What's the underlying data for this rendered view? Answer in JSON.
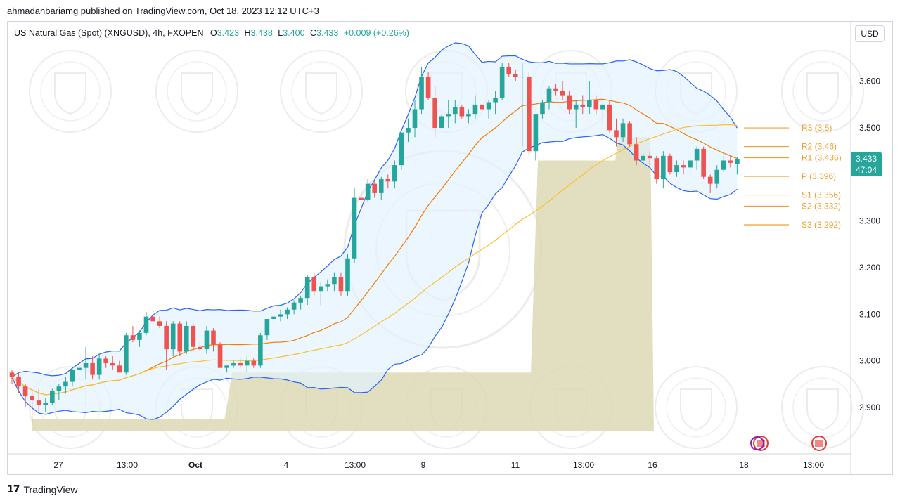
{
  "header": {
    "published": "ahmadanbariamg published on TradingView.com, Oct 18, 2023 12:12 UTC+3"
  },
  "legend": {
    "symbol": "US Natural Gas (Spot) (XNGUSD), 4h, FXOPEN",
    "o_label": "O",
    "o_value": "3.423",
    "h_label": "H",
    "h_value": "3.438",
    "l_label": "L",
    "l_value": "3.400",
    "c_label": "C",
    "c_value": "3.433",
    "change": "+0.009 (+0.26%)"
  },
  "currency_button": "USD",
  "last_price": {
    "value": "3.433",
    "countdown": "47:04"
  },
  "footer": {
    "brand": "TradingView"
  },
  "colors": {
    "up": "#26a69a",
    "down": "#ef5350",
    "band": "#2962ff",
    "band_fill": "#e3f2fd",
    "ma_orange": "#f57c00",
    "ma_yellow": "#fbc02d",
    "pivot": "#f0a030",
    "volume_profile": "#ddd9b5"
  },
  "chart_data": {
    "type": "candlestick",
    "timeframe": "4h",
    "y_ticks": [
      2.9,
      3.0,
      3.1,
      3.2,
      3.3,
      3.5,
      3.6
    ],
    "y_tick_labels": [
      "2.900",
      "3.000",
      "3.100",
      "3.200",
      "3.300",
      "3.500",
      "3.600"
    ],
    "x_tick_labels": [
      "27",
      "13:00",
      "Oct",
      "4",
      "13:00",
      "9",
      "11",
      "13:00",
      "16",
      "18",
      "13:00"
    ],
    "pivots": [
      {
        "label": "R3 (3.5)",
        "value": 3.5
      },
      {
        "label": "R2 (3.46)",
        "value": 3.46
      },
      {
        "label": "R1 (3.436)",
        "value": 3.436
      },
      {
        "label": "P (3.396)",
        "value": 3.396
      },
      {
        "label": "S1 (3.356)",
        "value": 3.356
      },
      {
        "label": "S2 (3.332)",
        "value": 3.332
      },
      {
        "label": "S3 (3.292)",
        "value": 3.292
      }
    ],
    "candles": [
      [
        2.975,
        2.98,
        2.95,
        2.965
      ],
      [
        2.965,
        2.975,
        2.93,
        2.945
      ],
      [
        2.945,
        2.95,
        2.9,
        2.925
      ],
      [
        2.925,
        2.93,
        2.87,
        2.915
      ],
      [
        2.915,
        2.94,
        2.89,
        2.905
      ],
      [
        2.905,
        2.92,
        2.89,
        2.91
      ],
      [
        2.91,
        2.94,
        2.905,
        2.935
      ],
      [
        2.935,
        2.95,
        2.915,
        2.945
      ],
      [
        2.945,
        2.965,
        2.93,
        2.955
      ],
      [
        2.955,
        2.985,
        2.945,
        2.98
      ],
      [
        2.98,
        2.99,
        2.96,
        2.985
      ],
      [
        2.985,
        3.03,
        2.96,
        2.995
      ],
      [
        2.995,
        3.01,
        2.96,
        2.97
      ],
      [
        2.97,
        3.015,
        2.96,
        3.005
      ],
      [
        3.005,
        3.01,
        2.985,
        2.995
      ],
      [
        2.995,
        3.01,
        2.98,
        2.99
      ],
      [
        2.99,
        3.0,
        2.975,
        2.975
      ],
      [
        2.975,
        3.06,
        2.97,
        3.055
      ],
      [
        3.055,
        3.075,
        3.04,
        3.045
      ],
      [
        3.045,
        3.065,
        3.03,
        3.06
      ],
      [
        3.06,
        3.105,
        3.055,
        3.095
      ],
      [
        3.095,
        3.11,
        3.08,
        3.085
      ],
      [
        3.085,
        3.095,
        3.07,
        3.075
      ],
      [
        3.075,
        3.085,
        2.98,
        3.025
      ],
      [
        3.025,
        3.085,
        3.01,
        3.08
      ],
      [
        3.08,
        3.085,
        3.01,
        3.02
      ],
      [
        3.02,
        3.085,
        3.015,
        3.075
      ],
      [
        3.075,
        3.08,
        3.02,
        3.03
      ],
      [
        3.03,
        3.04,
        3.02,
        3.025
      ],
      [
        3.025,
        3.075,
        3.015,
        3.065
      ],
      [
        3.065,
        3.07,
        3.02,
        3.035
      ],
      [
        3.035,
        3.04,
        2.985,
        2.985
      ],
      [
        2.985,
        2.99,
        2.975,
        2.99
      ],
      [
        2.99,
        3.0,
        2.985,
        2.995
      ],
      [
        2.995,
        3.005,
        2.985,
        2.99
      ],
      [
        2.99,
        3.01,
        2.975,
        3.0
      ],
      [
        3.0,
        3.005,
        2.985,
        2.99
      ],
      [
        2.99,
        3.06,
        2.985,
        3.055
      ],
      [
        3.055,
        3.09,
        3.045,
        3.09
      ],
      [
        3.09,
        3.1,
        3.08,
        3.095
      ],
      [
        3.095,
        3.11,
        3.085,
        3.1
      ],
      [
        3.1,
        3.115,
        3.09,
        3.11
      ],
      [
        3.11,
        3.13,
        3.1,
        3.125
      ],
      [
        3.125,
        3.14,
        3.11,
        3.135
      ],
      [
        3.135,
        3.185,
        3.12,
        3.18
      ],
      [
        3.18,
        3.19,
        3.14,
        3.15
      ],
      [
        3.15,
        3.17,
        3.12,
        3.16
      ],
      [
        3.16,
        3.175,
        3.15,
        3.165
      ],
      [
        3.165,
        3.19,
        3.15,
        3.18
      ],
      [
        3.18,
        3.19,
        3.14,
        3.15
      ],
      [
        3.15,
        3.23,
        3.14,
        3.22
      ],
      [
        3.22,
        3.37,
        3.21,
        3.35
      ],
      [
        3.35,
        3.37,
        3.33,
        3.345
      ],
      [
        3.345,
        3.39,
        3.34,
        3.38
      ],
      [
        3.38,
        3.385,
        3.35,
        3.36
      ],
      [
        3.36,
        3.395,
        3.345,
        3.39
      ],
      [
        3.39,
        3.4,
        3.37,
        3.385
      ],
      [
        3.385,
        3.43,
        3.37,
        3.42
      ],
      [
        3.42,
        3.49,
        3.41,
        3.49
      ],
      [
        3.49,
        3.52,
        3.47,
        3.5
      ],
      [
        3.5,
        3.56,
        3.48,
        3.54
      ],
      [
        3.54,
        3.63,
        3.53,
        3.61
      ],
      [
        3.61,
        3.62,
        3.56,
        3.565
      ],
      [
        3.565,
        3.59,
        3.48,
        3.5
      ],
      [
        3.5,
        3.53,
        3.5,
        3.525
      ],
      [
        3.525,
        3.56,
        3.5,
        3.53
      ],
      [
        3.53,
        3.56,
        3.51,
        3.545
      ],
      [
        3.545,
        3.55,
        3.52,
        3.525
      ],
      [
        3.525,
        3.54,
        3.51,
        3.53
      ],
      [
        3.53,
        3.57,
        3.52,
        3.55
      ],
      [
        3.55,
        3.56,
        3.52,
        3.54
      ],
      [
        3.54,
        3.56,
        3.52,
        3.555
      ],
      [
        3.555,
        3.58,
        3.53,
        3.565
      ],
      [
        3.565,
        3.64,
        3.56,
        3.63
      ],
      [
        3.63,
        3.64,
        3.61,
        3.615
      ],
      [
        3.615,
        3.625,
        3.6,
        3.61
      ],
      [
        3.61,
        3.64,
        3.46,
        3.61
      ],
      [
        3.61,
        3.62,
        3.44,
        3.45
      ],
      [
        3.45,
        3.53,
        3.43,
        3.53
      ],
      [
        3.53,
        3.56,
        3.52,
        3.555
      ],
      [
        3.555,
        3.59,
        3.54,
        3.585
      ],
      [
        3.585,
        3.595,
        3.57,
        3.58
      ],
      [
        3.58,
        3.6,
        3.56,
        3.57
      ],
      [
        3.57,
        3.58,
        3.53,
        3.54
      ],
      [
        3.54,
        3.56,
        3.5,
        3.55
      ],
      [
        3.55,
        3.57,
        3.53,
        3.545
      ],
      [
        3.545,
        3.6,
        3.53,
        3.56
      ],
      [
        3.56,
        3.57,
        3.53,
        3.54
      ],
      [
        3.54,
        3.56,
        3.51,
        3.55
      ],
      [
        3.55,
        3.56,
        3.49,
        3.495
      ],
      [
        3.495,
        3.52,
        3.46,
        3.48
      ],
      [
        3.48,
        3.52,
        3.47,
        3.51
      ],
      [
        3.51,
        3.515,
        3.46,
        3.465
      ],
      [
        3.465,
        3.48,
        3.42,
        3.43
      ],
      [
        3.43,
        3.445,
        3.42,
        3.44
      ],
      [
        3.44,
        3.45,
        3.42,
        3.435
      ],
      [
        3.435,
        3.44,
        3.38,
        3.39
      ],
      [
        3.39,
        3.45,
        3.37,
        3.44
      ],
      [
        3.44,
        3.445,
        3.4,
        3.405
      ],
      [
        3.405,
        3.43,
        3.395,
        3.42
      ],
      [
        3.42,
        3.43,
        3.4,
        3.415
      ],
      [
        3.415,
        3.44,
        3.4,
        3.43
      ],
      [
        3.43,
        3.46,
        3.41,
        3.455
      ],
      [
        3.455,
        3.46,
        3.39,
        3.395
      ],
      [
        3.395,
        3.4,
        3.36,
        3.38
      ],
      [
        3.38,
        3.42,
        3.37,
        3.41
      ],
      [
        3.41,
        3.44,
        3.405,
        3.43
      ],
      [
        3.43,
        3.44,
        3.415,
        3.425
      ],
      [
        3.423,
        3.438,
        3.4,
        3.433
      ]
    ]
  }
}
